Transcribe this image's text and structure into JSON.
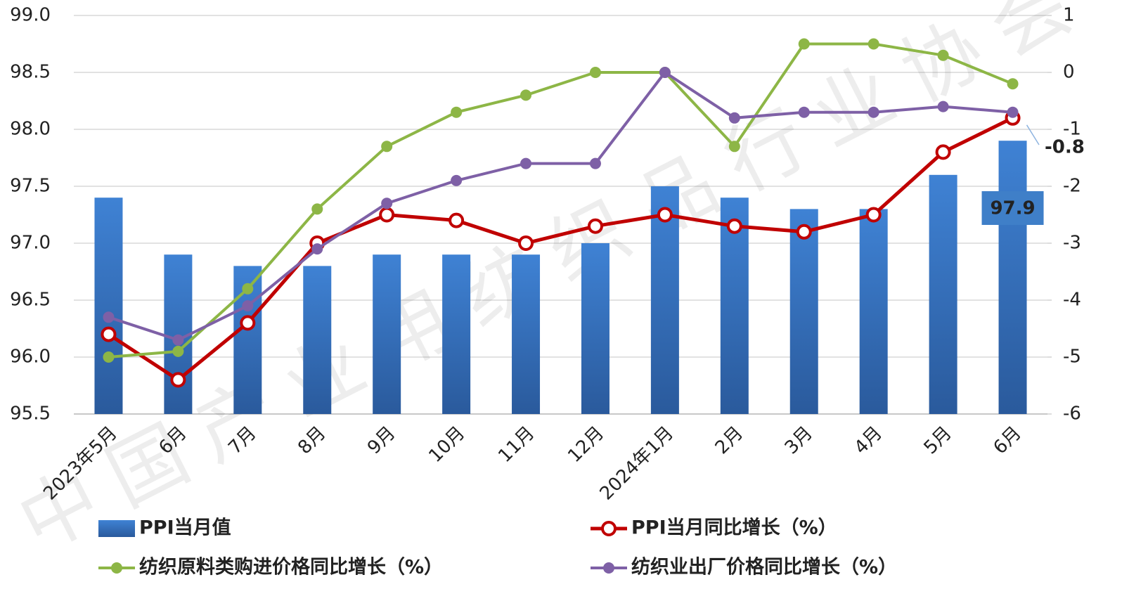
{
  "chart_data": {
    "type": "bar-line",
    "watermark": "中国产业用纺织品行业协会",
    "categories": [
      "2023年5月",
      "6月",
      "7月",
      "8月",
      "9月",
      "10月",
      "11月",
      "12月",
      "2024年1月",
      "2月",
      "3月",
      "4月",
      "5月",
      "6月"
    ],
    "series": [
      {
        "name": "PPI当月值",
        "type": "bar",
        "color": "#3a78c8",
        "axis": "y",
        "values": [
          97.4,
          96.9,
          96.8,
          96.8,
          96.9,
          96.9,
          96.9,
          97.0,
          97.5,
          97.4,
          97.3,
          97.3,
          97.6,
          97.9
        ]
      },
      {
        "name": "PPI当月同比增长（%）",
        "type": "line",
        "color": "#c00000",
        "axis": "y2",
        "values": [
          -4.6,
          -5.4,
          -4.4,
          -3.0,
          -2.5,
          -2.6,
          -3.0,
          -2.7,
          -2.5,
          -2.7,
          -2.8,
          -2.5,
          -1.4,
          -0.8
        ]
      },
      {
        "name": "纺织原料类购进价格同比增长（%）",
        "type": "line",
        "color": "#8db646",
        "axis": "y2",
        "values": [
          -5.0,
          -4.9,
          -3.8,
          -2.4,
          -1.3,
          -0.7,
          -0.4,
          0.0,
          0.0,
          -1.3,
          0.5,
          0.5,
          0.3,
          -0.2
        ]
      },
      {
        "name": "纺织业出厂价格同比增长（%）",
        "type": "line",
        "color": "#7e60a6",
        "axis": "y2",
        "values": [
          -4.3,
          -4.7,
          -4.1,
          -3.1,
          -2.3,
          -1.9,
          -1.6,
          -1.6,
          0.0,
          -0.8,
          -0.7,
          -0.7,
          -0.6,
          -0.7
        ]
      }
    ],
    "ylim": [
      95.5,
      99.0
    ],
    "yticks": [
      {
        "value": 95.5,
        "label": "95.5"
      },
      {
        "value": 96,
        "label": "96.0"
      },
      {
        "value": 96.5,
        "label": "96.5"
      },
      {
        "value": 97,
        "label": "97.0"
      },
      {
        "value": 97.5,
        "label": "97.5"
      },
      {
        "value": 98,
        "label": "98.0"
      },
      {
        "value": 98.5,
        "label": "98.5"
      },
      {
        "value": 99,
        "label": "99.0"
      }
    ],
    "y2lim": [
      -6,
      1
    ],
    "y2ticks": [
      -6,
      -5,
      -4,
      -3,
      -2,
      -1,
      0,
      1
    ],
    "grid": true
  }
}
